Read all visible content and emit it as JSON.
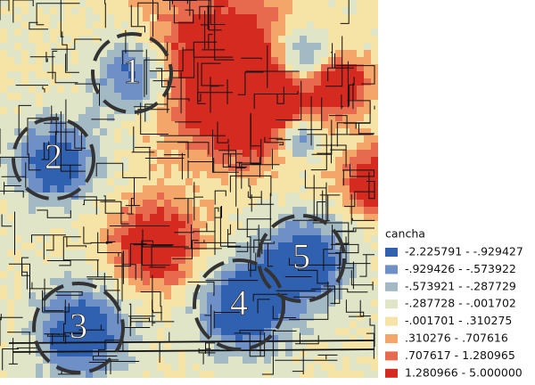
{
  "legend": {
    "title": "cancha",
    "items": [
      {
        "label": "-2.225791 - -.929427",
        "color": "#3060b0"
      },
      {
        "label": "-.929426 - -.573922",
        "color": "#6f90c6"
      },
      {
        "label": "-.573921 - -.287729",
        "color": "#a3b9c4"
      },
      {
        "label": "-.287728 - -.001702",
        "color": "#dfe5c6"
      },
      {
        "label": "-.001701 - .310275",
        "color": "#f6e3a6"
      },
      {
        "label": ".310276 - .707616",
        "color": "#f3a56a"
      },
      {
        "label": ".707617 - 1.280965",
        "color": "#e76a4f"
      },
      {
        "label": "1.280966 - 5.000000",
        "color": "#d42a20"
      }
    ]
  },
  "zones": [
    {
      "label": "1"
    },
    {
      "label": "2"
    },
    {
      "label": "3"
    },
    {
      "label": "4"
    },
    {
      "label": "5"
    }
  ]
}
